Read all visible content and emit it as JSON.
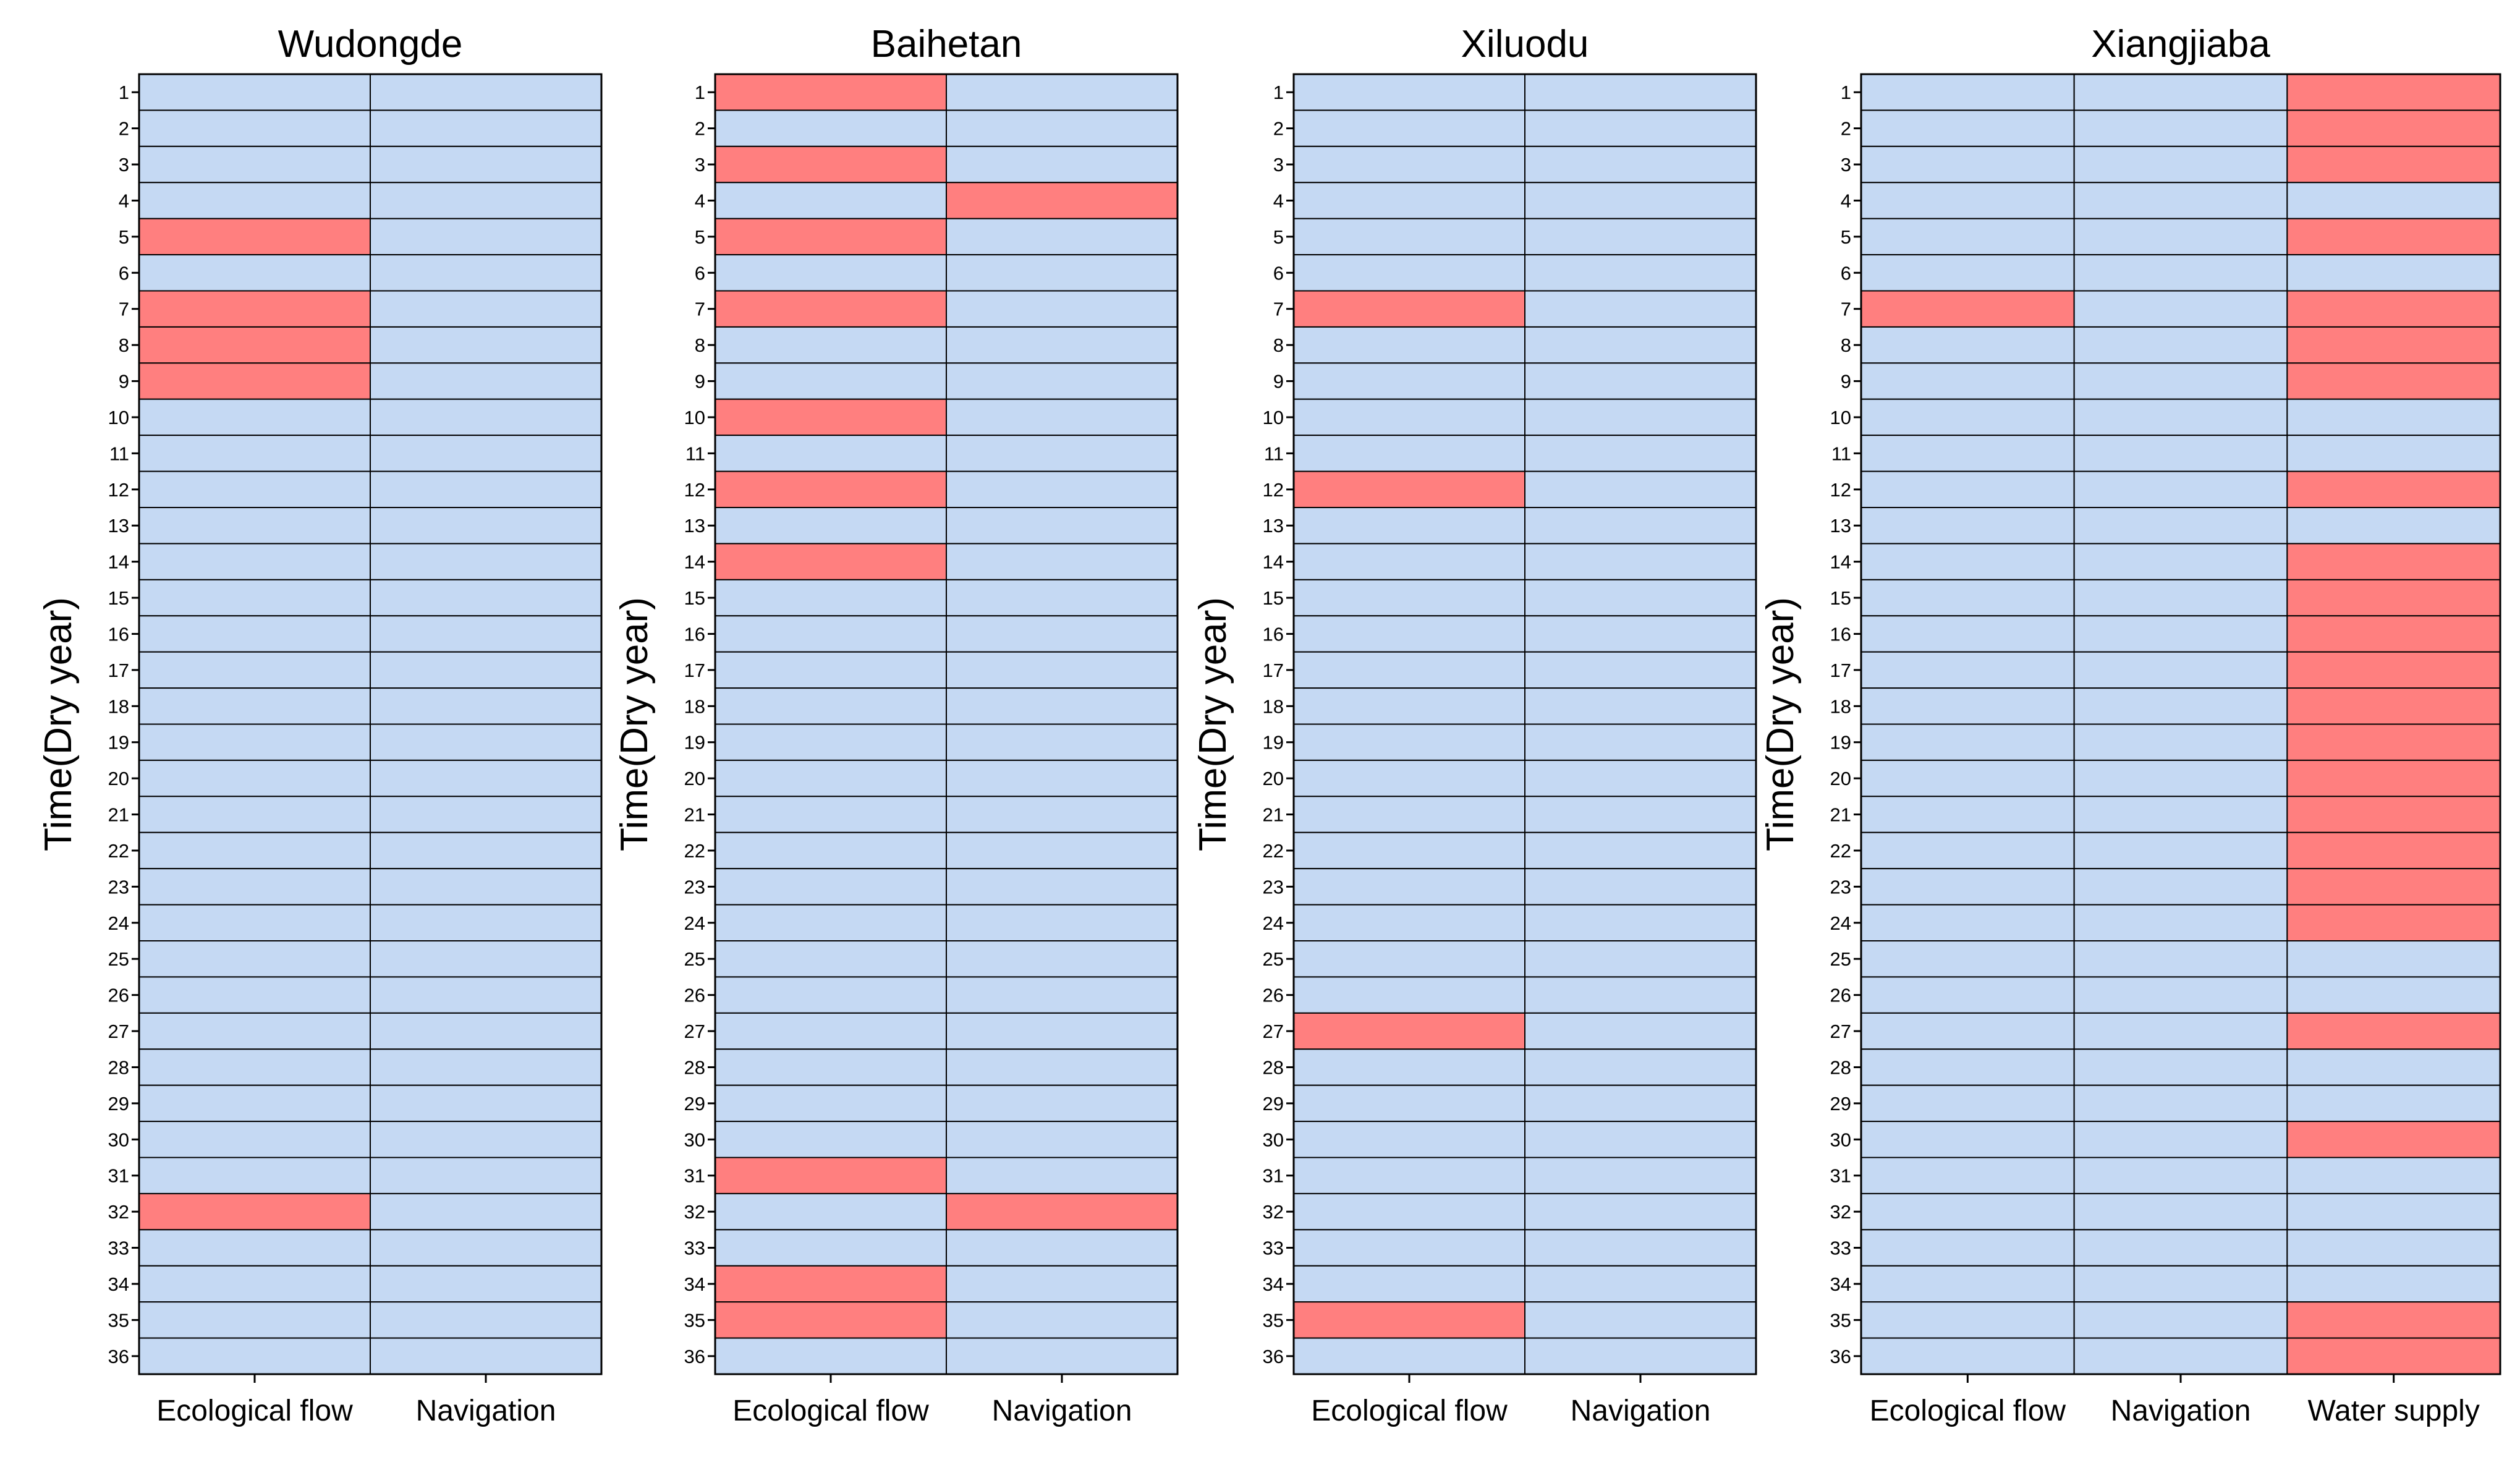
{
  "colors": {
    "unmet": "#FF7F7F",
    "met": "#C5D9F3",
    "border": "#000000"
  },
  "chart_data": [
    {
      "type": "heatmap",
      "title": "Wudongde",
      "ylabel": "Time(Dry year)",
      "xlabel": "",
      "y_categories": [
        "1",
        "2",
        "3",
        "4",
        "5",
        "6",
        "7",
        "8",
        "9",
        "10",
        "11",
        "12",
        "13",
        "14",
        "15",
        "16",
        "17",
        "18",
        "19",
        "20",
        "21",
        "22",
        "23",
        "24",
        "25",
        "26",
        "27",
        "28",
        "29",
        "30",
        "31",
        "32",
        "33",
        "34",
        "35",
        "36"
      ],
      "x_categories": [
        "Ecological flow",
        "Navigation"
      ],
      "unmet_periods": {
        "Ecological flow": [
          5,
          7,
          8,
          9,
          32
        ],
        "Navigation": []
      }
    },
    {
      "type": "heatmap",
      "title": "Baihetan",
      "ylabel": "Time(Dry year)",
      "xlabel": "",
      "y_categories": [
        "1",
        "2",
        "3",
        "4",
        "5",
        "6",
        "7",
        "8",
        "9",
        "10",
        "11",
        "12",
        "13",
        "14",
        "15",
        "16",
        "17",
        "18",
        "19",
        "20",
        "21",
        "22",
        "23",
        "24",
        "25",
        "26",
        "27",
        "28",
        "29",
        "30",
        "31",
        "32",
        "33",
        "34",
        "35",
        "36"
      ],
      "x_categories": [
        "Ecological flow",
        "Navigation"
      ],
      "unmet_periods": {
        "Ecological flow": [
          1,
          3,
          5,
          7,
          10,
          12,
          14,
          31,
          34,
          35
        ],
        "Navigation": [
          4,
          32
        ]
      }
    },
    {
      "type": "heatmap",
      "title": "Xiluodu",
      "ylabel": "Time(Dry year)",
      "xlabel": "",
      "y_categories": [
        "1",
        "2",
        "3",
        "4",
        "5",
        "6",
        "7",
        "8",
        "9",
        "10",
        "11",
        "12",
        "13",
        "14",
        "15",
        "16",
        "17",
        "18",
        "19",
        "20",
        "21",
        "22",
        "23",
        "24",
        "25",
        "26",
        "27",
        "28",
        "29",
        "30",
        "31",
        "32",
        "33",
        "34",
        "35",
        "36"
      ],
      "x_categories": [
        "Ecological flow",
        "Navigation"
      ],
      "unmet_periods": {
        "Ecological flow": [
          7,
          12,
          27,
          35
        ],
        "Navigation": []
      }
    },
    {
      "type": "heatmap",
      "title": "Xiangjiaba",
      "ylabel": "Time(Dry year)",
      "xlabel": "",
      "y_categories": [
        "1",
        "2",
        "3",
        "4",
        "5",
        "6",
        "7",
        "8",
        "9",
        "10",
        "11",
        "12",
        "13",
        "14",
        "15",
        "16",
        "17",
        "18",
        "19",
        "20",
        "21",
        "22",
        "23",
        "24",
        "25",
        "26",
        "27",
        "28",
        "29",
        "30",
        "31",
        "32",
        "33",
        "34",
        "35",
        "36"
      ],
      "x_categories": [
        "Ecological flow",
        "Navigation",
        "Water supply"
      ],
      "unmet_periods": {
        "Ecological flow": [
          7
        ],
        "Navigation": [],
        "Water supply": [
          1,
          2,
          3,
          5,
          7,
          8,
          9,
          12,
          14,
          15,
          16,
          17,
          18,
          19,
          20,
          21,
          22,
          23,
          24,
          27,
          30,
          35,
          36
        ]
      }
    }
  ]
}
